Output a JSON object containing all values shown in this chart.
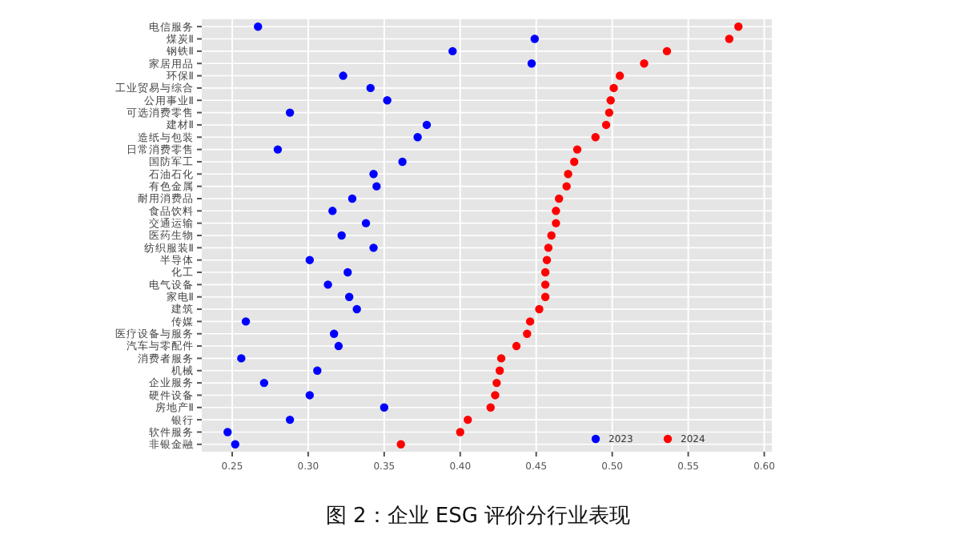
{
  "chart_data": {
    "type": "scatter",
    "title": "图 2：企业 ESG 评价分行业表现",
    "categories": [
      "电信服务",
      "煤炭Ⅱ",
      "钢铁Ⅱ",
      "家居用品",
      "环保Ⅱ",
      "工业贸易与综合",
      "公用事业Ⅱ",
      "可选消费零售",
      "建材Ⅱ",
      "造纸与包装",
      "日常消费零售",
      "国防军工",
      "石油石化",
      "有色金属",
      "耐用消费品",
      "食品饮料",
      "交通运输",
      "医药生物",
      "纺织服装Ⅱ",
      "半导体",
      "化工",
      "电气设备",
      "家电Ⅱ",
      "建筑",
      "传媒",
      "医疗设备与服务",
      "汽车与零配件",
      "消费者服务",
      "机械",
      "企业服务",
      "硬件设备",
      "房地产Ⅱ",
      "银行",
      "软件服务",
      "非银金融"
    ],
    "orientation": "horizontal",
    "series": [
      {
        "name": "2023",
        "color": "#0000ff",
        "values": [
          0.267,
          0.449,
          0.395,
          0.447,
          0.323,
          0.341,
          0.352,
          0.288,
          0.378,
          0.372,
          0.28,
          0.362,
          0.343,
          0.345,
          0.329,
          0.316,
          0.338,
          0.322,
          0.343,
          0.301,
          0.326,
          0.313,
          0.327,
          0.332,
          0.259,
          0.317,
          0.32,
          0.256,
          0.306,
          0.271,
          0.301,
          0.35,
          0.288,
          0.247,
          0.252
        ]
      },
      {
        "name": "2024",
        "color": "#ff0000",
        "values": [
          0.583,
          0.577,
          0.536,
          0.521,
          0.505,
          0.501,
          0.499,
          0.498,
          0.496,
          0.489,
          0.477,
          0.475,
          0.471,
          0.47,
          0.465,
          0.463,
          0.463,
          0.46,
          0.458,
          0.457,
          0.456,
          0.456,
          0.456,
          0.452,
          0.446,
          0.444,
          0.437,
          0.427,
          0.426,
          0.424,
          0.423,
          0.42,
          0.405,
          0.4,
          0.361
        ]
      }
    ],
    "xlim": [
      0.23,
      0.605
    ],
    "xticks": [
      {
        "value": 0.25,
        "label": "0.25"
      },
      {
        "value": 0.3,
        "label": "0.30"
      },
      {
        "value": 0.35,
        "label": "0.35"
      },
      {
        "value": 0.4,
        "label": "0.40"
      },
      {
        "value": 0.45,
        "label": "0.45"
      },
      {
        "value": 0.5,
        "label": "0.50"
      },
      {
        "value": 0.55,
        "label": "0.55"
      },
      {
        "value": 0.6,
        "label": "0.60"
      }
    ],
    "grid": true,
    "legend": "bottom right",
    "marker": "circle"
  }
}
